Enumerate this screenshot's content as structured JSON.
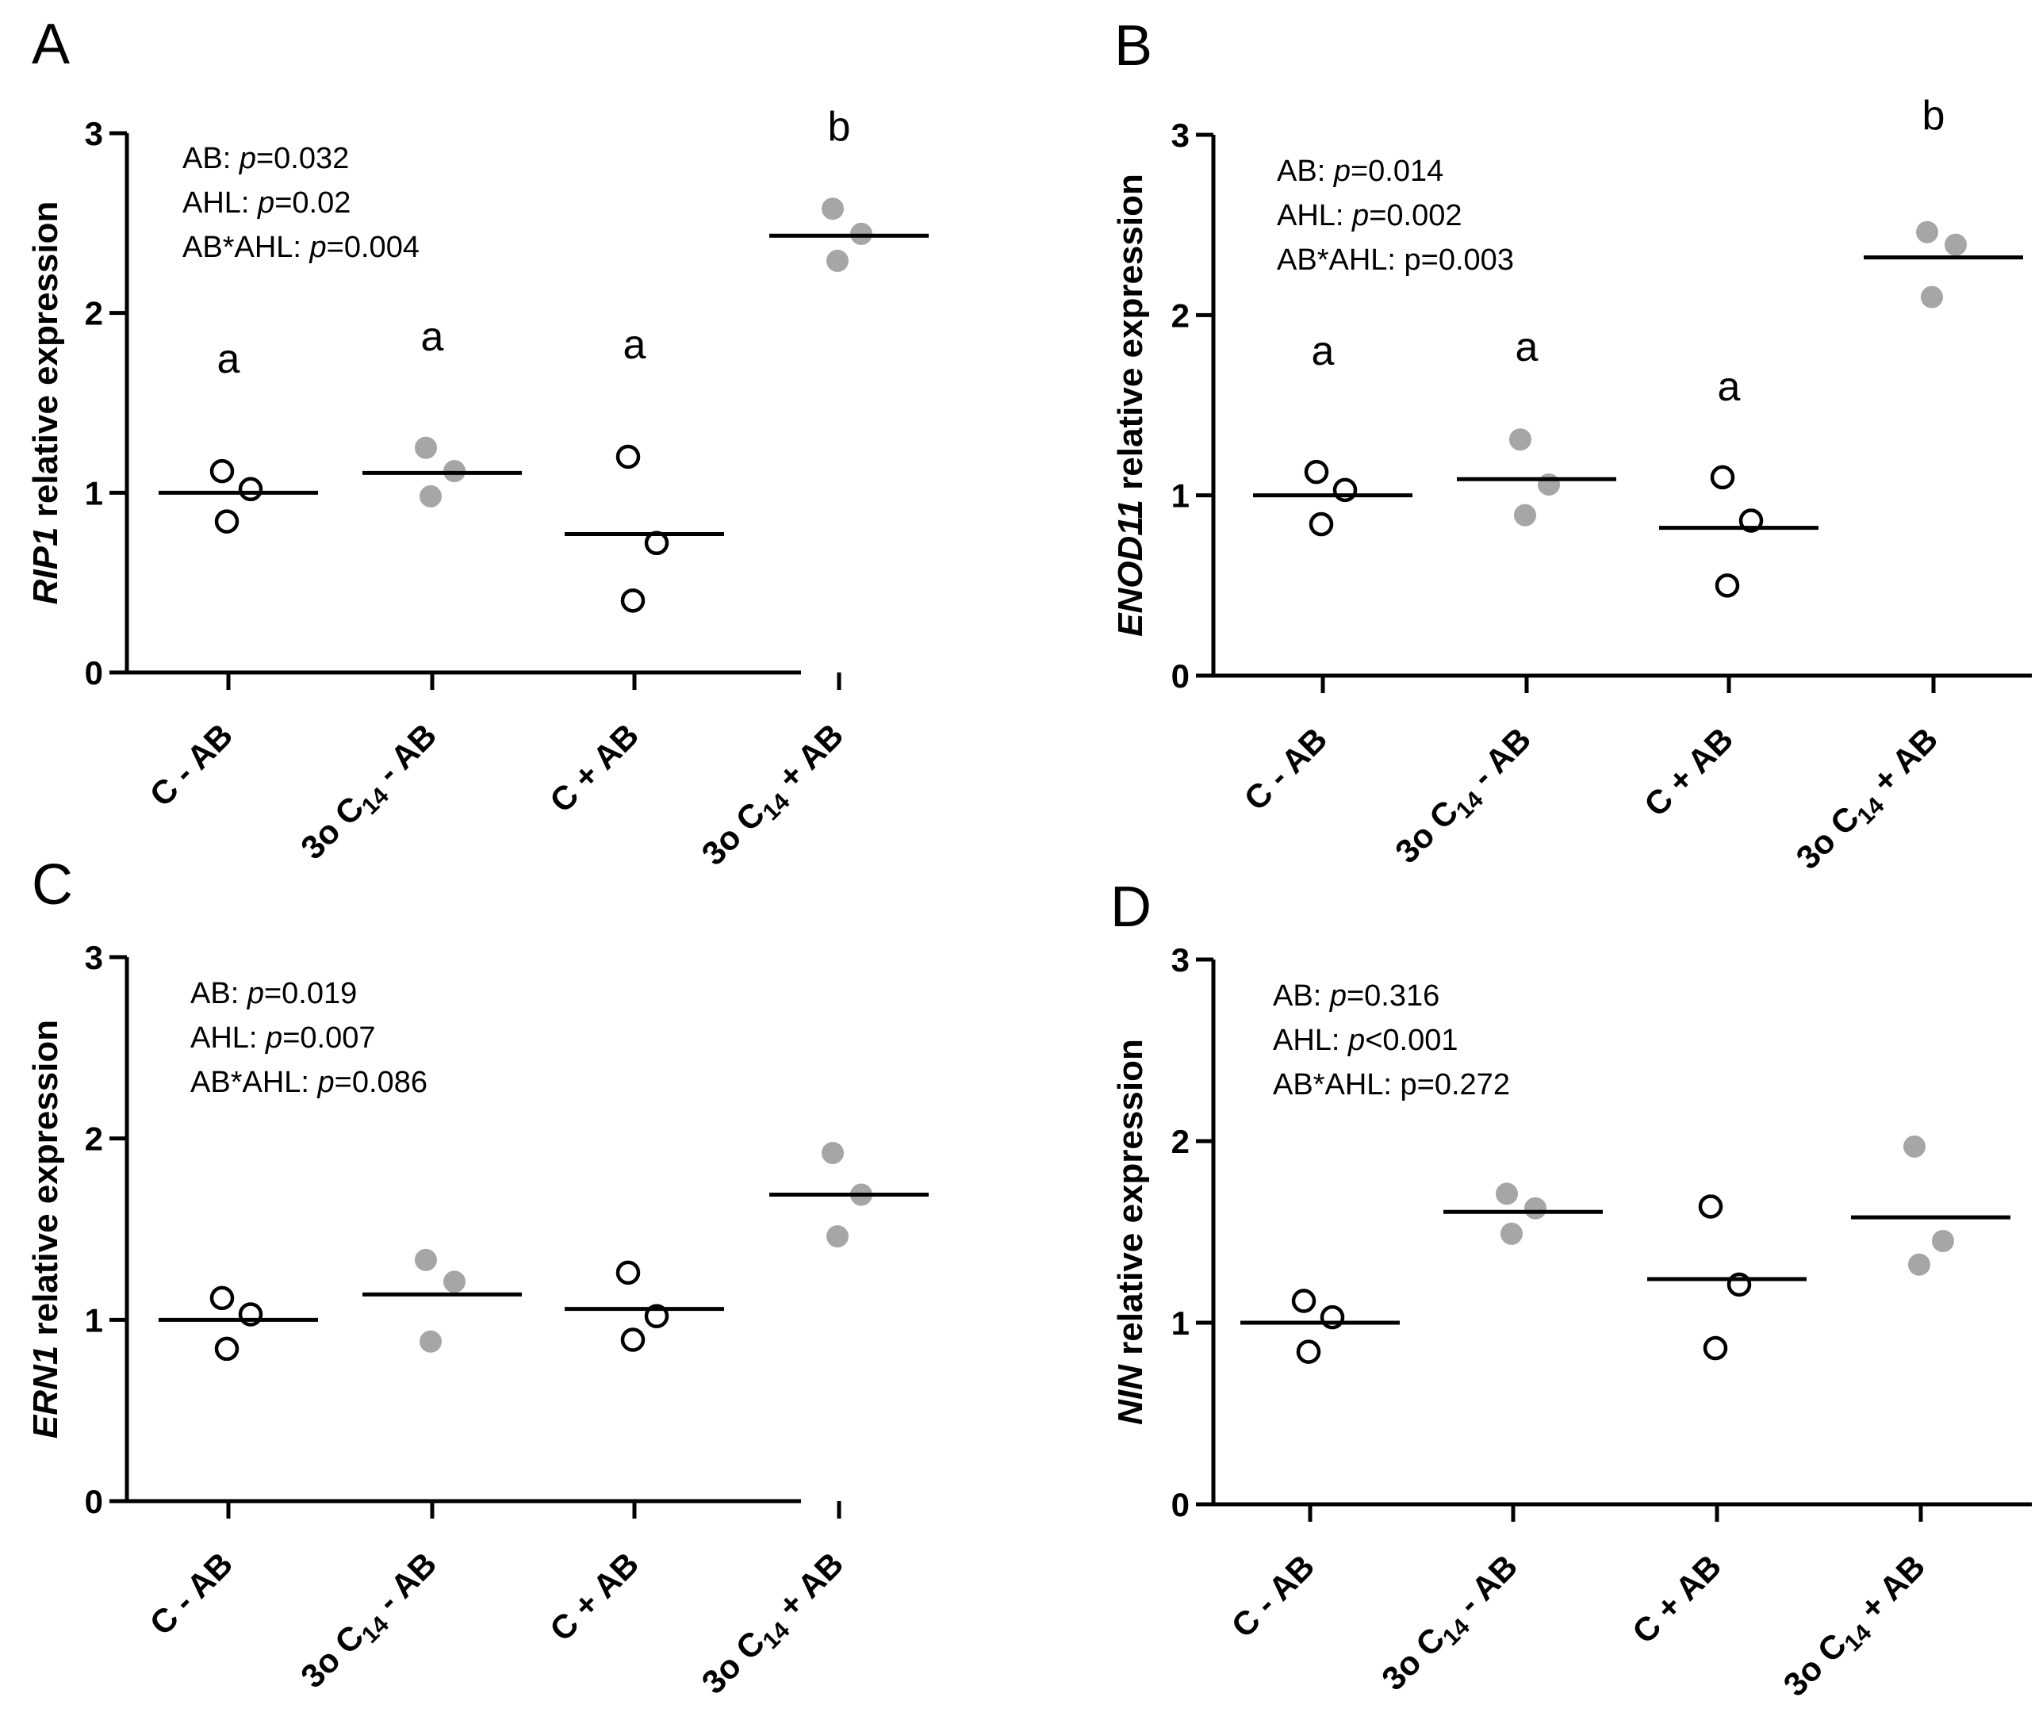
{
  "chart_data": [
    {
      "type": "scatter",
      "panel": "A",
      "gene": "RIP1",
      "ylabel_suffix": "relative expression",
      "ylim": [
        0,
        3
      ],
      "yticks": [
        "0",
        "1",
        "2",
        "3"
      ],
      "categories": [
        {
          "main": "C - AB",
          "pre": "",
          "sub": "",
          "post": ""
        },
        {
          "main": "",
          "pre": "3o C",
          "sub": "14",
          "post": " - AB"
        },
        {
          "main": "C + AB",
          "pre": "",
          "sub": "",
          "post": ""
        },
        {
          "main": "",
          "pre": "3o C",
          "sub": "14",
          "post": " + AB"
        }
      ],
      "stats": [
        {
          "label": "AB:",
          "p": "p",
          "value": "=0.032"
        },
        {
          "label": "AHL:",
          "p": "p",
          "value": "=0.02"
        },
        {
          "label": "AB*AHL:",
          "p": "p",
          "value": "=0.004"
        }
      ],
      "groups": [
        {
          "fill": "open",
          "points": [
            1.12,
            1.02,
            0.84
          ],
          "mean": 1.0,
          "letter": "a"
        },
        {
          "fill": "gray",
          "points": [
            1.25,
            1.12,
            0.98
          ],
          "mean": 1.11,
          "letter": "a"
        },
        {
          "fill": "open",
          "points": [
            1.2,
            0.72,
            0.4
          ],
          "mean": 0.77,
          "letter": "a"
        },
        {
          "fill": "gray",
          "points": [
            2.58,
            2.44,
            2.29
          ],
          "mean": 2.43,
          "letter": "b"
        }
      ]
    },
    {
      "type": "scatter",
      "panel": "B",
      "gene": "ENOD11",
      "ylabel_suffix": "relative expression",
      "ylim": [
        0,
        3
      ],
      "yticks": [
        "0",
        "1",
        "2",
        "3"
      ],
      "categories": [
        {
          "main": "C - AB",
          "pre": "",
          "sub": "",
          "post": ""
        },
        {
          "main": "",
          "pre": "3o C",
          "sub": "14",
          "post": " - AB"
        },
        {
          "main": "C + AB",
          "pre": "",
          "sub": "",
          "post": ""
        },
        {
          "main": "",
          "pre": "3o C",
          "sub": "14",
          "post": " + AB"
        }
      ],
      "stats": [
        {
          "label": "AB:",
          "p": "p",
          "value": "=0.014"
        },
        {
          "label": "AHL:",
          "p": "p",
          "value": "=0.002"
        },
        {
          "label": "AB*AHL:",
          "p": "",
          "value": "p=0.003"
        }
      ],
      "groups": [
        {
          "fill": "open",
          "points": [
            1.13,
            1.03,
            0.84
          ],
          "mean": 1.0,
          "letter": "a"
        },
        {
          "fill": "gray",
          "points": [
            1.31,
            1.06,
            0.89
          ],
          "mean": 1.09,
          "letter": "a"
        },
        {
          "fill": "open",
          "points": [
            1.1,
            0.86,
            0.5
          ],
          "mean": 0.82,
          "letter": "a"
        },
        {
          "fill": "gray",
          "points": [
            2.46,
            2.39,
            2.1
          ],
          "mean": 2.32,
          "letter": "b"
        }
      ]
    },
    {
      "type": "scatter",
      "panel": "C",
      "gene": "ERN1",
      "ylabel_suffix": "relative expression",
      "ylim": [
        0,
        3
      ],
      "yticks": [
        "0",
        "1",
        "2",
        "3"
      ],
      "categories": [
        {
          "main": "C - AB",
          "pre": "",
          "sub": "",
          "post": ""
        },
        {
          "main": "",
          "pre": "3o C",
          "sub": "14",
          "post": " - AB"
        },
        {
          "main": "C + AB",
          "pre": "",
          "sub": "",
          "post": ""
        },
        {
          "main": "",
          "pre": "3o C",
          "sub": "14",
          "post": " + AB"
        }
      ],
      "stats": [
        {
          "label": "AB:",
          "p": "p",
          "value": "=0.019"
        },
        {
          "label": "AHL:",
          "p": "p",
          "value": "=0.007"
        },
        {
          "label": "AB*AHL:",
          "p": "p",
          "value": "=0.086"
        }
      ],
      "groups": [
        {
          "fill": "open",
          "points": [
            1.12,
            1.03,
            0.84
          ],
          "mean": 1.0,
          "letter": ""
        },
        {
          "fill": "gray",
          "points": [
            1.33,
            1.21,
            0.88
          ],
          "mean": 1.14,
          "letter": ""
        },
        {
          "fill": "open",
          "points": [
            1.26,
            1.02,
            0.89
          ],
          "mean": 1.06,
          "letter": ""
        },
        {
          "fill": "gray",
          "points": [
            1.92,
            1.69,
            1.46
          ],
          "mean": 1.69,
          "letter": ""
        }
      ]
    },
    {
      "type": "scatter",
      "panel": "D",
      "gene": "NIN",
      "ylabel_suffix": "relative expression",
      "ylim": [
        0,
        3
      ],
      "yticks": [
        "0",
        "1",
        "2",
        "3"
      ],
      "categories": [
        {
          "main": "C - AB",
          "pre": "",
          "sub": "",
          "post": ""
        },
        {
          "main": "",
          "pre": "3o C",
          "sub": "14",
          "post": " - AB"
        },
        {
          "main": "C + AB",
          "pre": "",
          "sub": "",
          "post": ""
        },
        {
          "main": "",
          "pre": "3o C",
          "sub": "14",
          "post": " + AB"
        }
      ],
      "stats": [
        {
          "label": "AB:",
          "p": "p",
          "value": "=0.316"
        },
        {
          "label": "AHL:",
          "p": "p",
          "value": "<0.001"
        },
        {
          "label": "AB*AHL:",
          "p": "",
          "value": "p=0.272"
        }
      ],
      "groups": [
        {
          "fill": "open",
          "points": [
            1.12,
            1.03,
            0.84
          ],
          "mean": 1.0,
          "letter": ""
        },
        {
          "fill": "gray",
          "points": [
            1.71,
            1.63,
            1.49
          ],
          "mean": 1.61,
          "letter": ""
        },
        {
          "fill": "open",
          "points": [
            1.64,
            1.21,
            0.86
          ],
          "mean": 1.24,
          "letter": ""
        },
        {
          "fill": "gray",
          "points": [
            1.97,
            1.45,
            1.32
          ],
          "mean": 1.58,
          "letter": ""
        }
      ]
    }
  ],
  "colors": {
    "axis": "#000000",
    "open_fill": "#ffffff",
    "gray_fill": "#a6a6a6",
    "mean_line": "#000000"
  }
}
